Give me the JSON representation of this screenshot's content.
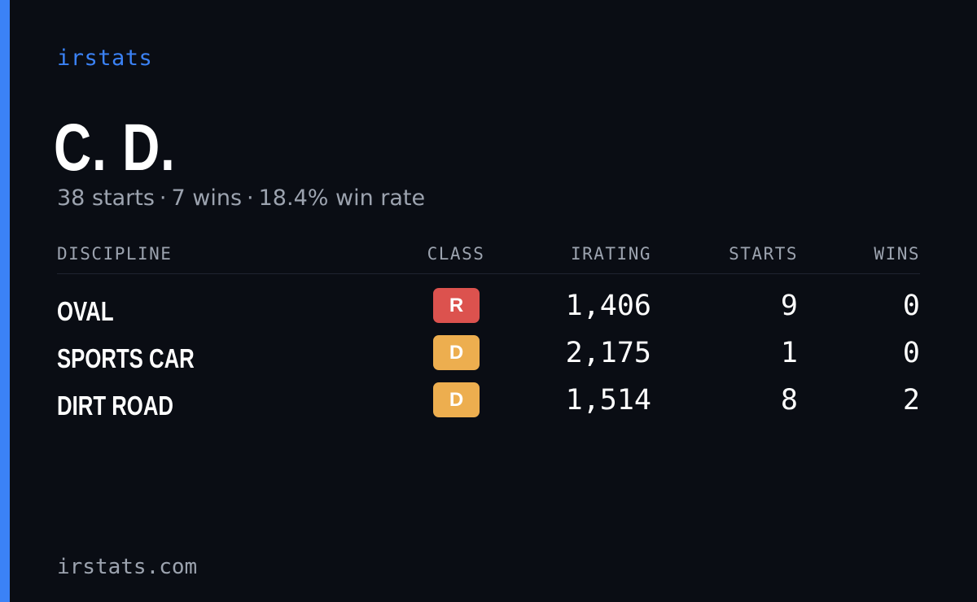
{
  "brand": "irstats",
  "player": {
    "name": "C. D.",
    "starts_text": "38 starts",
    "wins_text": "7 wins",
    "win_rate_text": "18.4% win rate",
    "separator": "·"
  },
  "table": {
    "headers": {
      "discipline": "DISCIPLINE",
      "class": "CLASS",
      "irating": "IRATING",
      "starts": "STARTS",
      "wins": "WINS"
    },
    "rows": [
      {
        "discipline": "OVAL",
        "class": "R",
        "class_color": "#dc524e",
        "irating": "1,406",
        "starts": "9",
        "wins": "0"
      },
      {
        "discipline": "SPORTS CAR",
        "class": "D",
        "class_color": "#edae4f",
        "irating": "2,175",
        "starts": "1",
        "wins": "0"
      },
      {
        "discipline": "DIRT ROAD",
        "class": "D",
        "class_color": "#edae4f",
        "irating": "1,514",
        "starts": "8",
        "wins": "2"
      }
    ]
  },
  "footer": "irstats.com",
  "colors": {
    "background": "#0a0d14",
    "accent": "#3b82f6",
    "muted": "#9ca3af",
    "class_r": "#dc524e",
    "class_d": "#edae4f"
  }
}
